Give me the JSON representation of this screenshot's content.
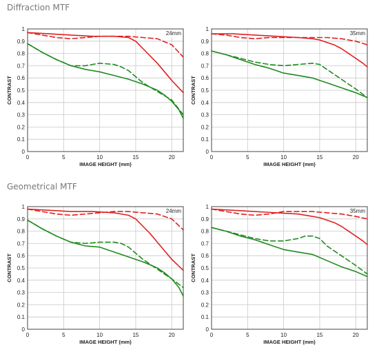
{
  "sections": {
    "diffraction_title": "Diffraction MTF",
    "geometrical_title": "Geometrical MTF"
  },
  "colors": {
    "red": "#e02020",
    "green": "#1f8a1f",
    "grid": "#c8c8c8",
    "frame": "#444444"
  },
  "chart_data": [
    {
      "type": "line",
      "section": "Diffraction MTF",
      "focal_label": "24mm",
      "xlabel": "IMAGE HEIGHT (mm)",
      "ylabel": "CONTRAST",
      "xlim": [
        0,
        21.6
      ],
      "ylim": [
        0,
        1
      ],
      "xticks": [
        0,
        5,
        10,
        15,
        20
      ],
      "yticks": [
        0,
        0.1,
        0.2,
        0.3,
        0.4,
        0.5,
        0.6,
        0.7,
        0.8,
        0.9,
        1
      ],
      "ytick_labels": [
        "0",
        "0.1",
        "0.2",
        "0.3",
        "0.4",
        "0.5",
        "0.6",
        "0.7",
        "0.8",
        "0.9",
        "1"
      ],
      "grid": true,
      "series": [
        {
          "color": "red",
          "dash": false,
          "x": [
            0,
            3,
            6,
            9,
            12,
            14,
            15,
            16,
            17,
            18,
            19,
            20,
            21.6
          ],
          "y": [
            0.97,
            0.96,
            0.95,
            0.94,
            0.94,
            0.93,
            0.9,
            0.84,
            0.78,
            0.72,
            0.65,
            0.58,
            0.48
          ]
        },
        {
          "color": "red",
          "dash": true,
          "x": [
            0,
            2,
            4,
            6,
            8,
            10,
            12,
            14,
            16,
            18,
            20,
            21.6
          ],
          "y": [
            0.97,
            0.95,
            0.93,
            0.92,
            0.93,
            0.94,
            0.94,
            0.94,
            0.93,
            0.92,
            0.87,
            0.77
          ]
        },
        {
          "color": "green",
          "dash": false,
          "x": [
            0,
            2,
            4,
            6,
            8,
            10,
            12,
            14,
            16,
            18,
            19,
            20,
            21,
            21.6
          ],
          "y": [
            0.88,
            0.81,
            0.75,
            0.7,
            0.67,
            0.65,
            0.62,
            0.59,
            0.55,
            0.5,
            0.46,
            0.41,
            0.34,
            0.27
          ]
        },
        {
          "color": "green",
          "dash": true,
          "x": [
            0,
            2,
            4,
            6,
            8,
            10,
            12,
            13,
            14,
            15,
            16,
            18,
            20,
            21.6
          ],
          "y": [
            0.88,
            0.81,
            0.75,
            0.7,
            0.7,
            0.72,
            0.71,
            0.69,
            0.66,
            0.61,
            0.56,
            0.49,
            0.42,
            0.3
          ]
        }
      ]
    },
    {
      "type": "line",
      "section": "Diffraction MTF",
      "focal_label": "35mm",
      "xlabel": "IMAGE HEIGHT (mm)",
      "ylabel": "CONTRAST",
      "xlim": [
        0,
        21.6
      ],
      "ylim": [
        0,
        1
      ],
      "xticks": [
        0,
        5,
        10,
        15,
        20
      ],
      "yticks": [
        0,
        0.1,
        0.2,
        0.3,
        0.4,
        0.5,
        0.6,
        0.7,
        0.8,
        0.9,
        1
      ],
      "ytick_labels": [
        "0",
        "0.1",
        "0.2",
        "0.3",
        "0.4",
        "0.5",
        "0.6",
        "0.7",
        "0.8",
        "0.9",
        "1"
      ],
      "grid": true,
      "series": [
        {
          "color": "red",
          "dash": false,
          "x": [
            0,
            3,
            6,
            9,
            12,
            14,
            15,
            16,
            17,
            18,
            19,
            20,
            21,
            21.6
          ],
          "y": [
            0.96,
            0.96,
            0.95,
            0.94,
            0.93,
            0.92,
            0.91,
            0.89,
            0.87,
            0.84,
            0.8,
            0.76,
            0.72,
            0.69
          ]
        },
        {
          "color": "red",
          "dash": true,
          "x": [
            0,
            2,
            4,
            6,
            8,
            10,
            12,
            14,
            16,
            18,
            20,
            21.6
          ],
          "y": [
            0.96,
            0.95,
            0.93,
            0.92,
            0.93,
            0.93,
            0.93,
            0.93,
            0.93,
            0.92,
            0.9,
            0.87
          ]
        },
        {
          "color": "green",
          "dash": false,
          "x": [
            0,
            2,
            4,
            6,
            8,
            10,
            12,
            14,
            16,
            18,
            20,
            21.6
          ],
          "y": [
            0.82,
            0.79,
            0.75,
            0.71,
            0.68,
            0.64,
            0.62,
            0.6,
            0.56,
            0.52,
            0.48,
            0.44
          ]
        },
        {
          "color": "green",
          "dash": true,
          "x": [
            0,
            2,
            4,
            6,
            8,
            10,
            12,
            14,
            15,
            16,
            18,
            20,
            21.6
          ],
          "y": [
            0.82,
            0.79,
            0.76,
            0.73,
            0.71,
            0.7,
            0.71,
            0.72,
            0.71,
            0.67,
            0.59,
            0.51,
            0.44
          ]
        }
      ]
    },
    {
      "type": "line",
      "section": "Geometrical MTF",
      "focal_label": "24mm",
      "xlabel": "IMAGE HEIGHT (mm)",
      "ylabel": "CONTRAST",
      "xlim": [
        0,
        21.6
      ],
      "ylim": [
        0,
        1
      ],
      "xticks": [
        0,
        5,
        10,
        15,
        20
      ],
      "yticks": [
        0,
        0.1,
        0.2,
        0.3,
        0.4,
        0.5,
        0.6,
        0.7,
        0.8,
        0.9,
        1
      ],
      "ytick_labels": [
        "0",
        "0.1",
        "0.2",
        "0.3",
        "0.4",
        "0.5",
        "0.6",
        "0.7",
        "0.8",
        "0.9",
        "1"
      ],
      "grid": true,
      "series": [
        {
          "color": "red",
          "dash": false,
          "x": [
            0,
            3,
            6,
            9,
            12,
            14,
            15,
            16,
            17,
            18,
            19,
            20,
            21.6
          ],
          "y": [
            0.98,
            0.97,
            0.96,
            0.96,
            0.95,
            0.93,
            0.9,
            0.84,
            0.78,
            0.71,
            0.64,
            0.57,
            0.48
          ]
        },
        {
          "color": "red",
          "dash": true,
          "x": [
            0,
            2,
            4,
            6,
            8,
            10,
            12,
            14,
            16,
            18,
            20,
            21.6
          ],
          "y": [
            0.98,
            0.96,
            0.94,
            0.93,
            0.94,
            0.95,
            0.96,
            0.96,
            0.95,
            0.94,
            0.9,
            0.81
          ]
        },
        {
          "color": "green",
          "dash": false,
          "x": [
            0,
            2,
            4,
            6,
            8,
            10,
            12,
            14,
            16,
            18,
            19,
            20,
            21,
            21.6
          ],
          "y": [
            0.89,
            0.82,
            0.76,
            0.71,
            0.68,
            0.67,
            0.63,
            0.59,
            0.55,
            0.5,
            0.46,
            0.41,
            0.34,
            0.27
          ]
        },
        {
          "color": "green",
          "dash": true,
          "x": [
            0,
            2,
            4,
            6,
            8,
            10,
            12,
            13,
            14,
            15,
            16,
            18,
            20,
            21.6
          ],
          "y": [
            0.89,
            0.82,
            0.76,
            0.71,
            0.7,
            0.71,
            0.71,
            0.7,
            0.67,
            0.62,
            0.57,
            0.49,
            0.41,
            0.34
          ]
        }
      ]
    },
    {
      "type": "line",
      "section": "Geometrical MTF",
      "focal_label": "35mm",
      "xlabel": "IMAGE HEIGHT (mm)",
      "ylabel": "CONTRAST",
      "xlim": [
        0,
        21.6
      ],
      "ylim": [
        0,
        1
      ],
      "xticks": [
        0,
        5,
        10,
        15,
        20
      ],
      "yticks": [
        0,
        0.1,
        0.2,
        0.3,
        0.4,
        0.5,
        0.6,
        0.7,
        0.8,
        0.9,
        1
      ],
      "ytick_labels": [
        "0",
        "0.1",
        "0.2",
        "0.3",
        "0.4",
        "0.5",
        "0.6",
        "0.7",
        "0.8",
        "0.9",
        "1"
      ],
      "grid": true,
      "series": [
        {
          "color": "red",
          "dash": false,
          "x": [
            0,
            3,
            6,
            9,
            12,
            14,
            15,
            16,
            17,
            18,
            19,
            20,
            21,
            21.6
          ],
          "y": [
            0.98,
            0.97,
            0.96,
            0.95,
            0.94,
            0.92,
            0.91,
            0.89,
            0.87,
            0.84,
            0.8,
            0.76,
            0.72,
            0.69
          ]
        },
        {
          "color": "red",
          "dash": true,
          "x": [
            0,
            2,
            4,
            6,
            8,
            10,
            12,
            14,
            16,
            18,
            20,
            21.6
          ],
          "y": [
            0.98,
            0.96,
            0.94,
            0.93,
            0.94,
            0.96,
            0.96,
            0.96,
            0.95,
            0.94,
            0.92,
            0.9
          ]
        },
        {
          "color": "green",
          "dash": false,
          "x": [
            0,
            2,
            4,
            6,
            8,
            10,
            12,
            14,
            16,
            18,
            20,
            21.6
          ],
          "y": [
            0.83,
            0.8,
            0.76,
            0.73,
            0.69,
            0.65,
            0.63,
            0.61,
            0.56,
            0.51,
            0.47,
            0.43
          ]
        },
        {
          "color": "green",
          "dash": true,
          "x": [
            0,
            2,
            4,
            6,
            8,
            10,
            12,
            13,
            14,
            15,
            16,
            18,
            20,
            21.6
          ],
          "y": [
            0.83,
            0.8,
            0.77,
            0.74,
            0.72,
            0.72,
            0.74,
            0.76,
            0.76,
            0.74,
            0.68,
            0.6,
            0.52,
            0.45
          ]
        }
      ]
    }
  ]
}
